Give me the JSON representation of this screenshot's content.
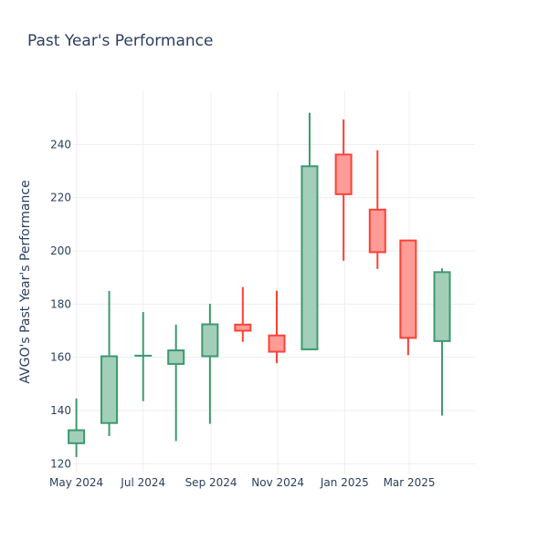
{
  "chart_data": {
    "type": "candlestick",
    "title": "Past Year's Performance",
    "xlabel": "",
    "ylabel": "AVGO's Past Year's Performance",
    "ylim": [
      116,
      260
    ],
    "yticks": [
      120,
      140,
      160,
      180,
      200,
      220,
      240
    ],
    "xticks": [
      {
        "date": "2024-05-01",
        "label": "May 2024"
      },
      {
        "date": "2024-07-01",
        "label": "Jul 2024"
      },
      {
        "date": "2024-09-01",
        "label": "Sep 2024"
      },
      {
        "date": "2024-11-01",
        "label": "Nov 2024"
      },
      {
        "date": "2025-01-01",
        "label": "Jan 2025"
      },
      {
        "date": "2025-03-01",
        "label": "Mar 2025"
      }
    ],
    "x_range": [
      "2024-04-28",
      "2025-04-30"
    ],
    "colors": {
      "increasing_line": "#3d9970",
      "increasing_fill": "#a3cfb9",
      "decreasing_line": "#ff4136",
      "decreasing_fill": "#ff9c98",
      "grid": "#eeeeee",
      "text": "#2a3f5f"
    },
    "grid": true,
    "series": [
      {
        "values": [
          {
            "date": "2024-05-01",
            "open": 127.7,
            "high": 144.5,
            "low": 122.5,
            "close": 132.6
          },
          {
            "date": "2024-05-31",
            "open": 135.3,
            "high": 184.9,
            "low": 130.4,
            "close": 160.4
          },
          {
            "date": "2024-07-01",
            "open": 160.6,
            "high": 177.0,
            "low": 143.5,
            "close": 160.6
          },
          {
            "date": "2024-07-31",
            "open": 157.5,
            "high": 172.3,
            "low": 128.5,
            "close": 162.6
          },
          {
            "date": "2024-08-31",
            "open": 160.4,
            "high": 180.1,
            "low": 135.0,
            "close": 172.4
          },
          {
            "date": "2024-09-30",
            "open": 172.3,
            "high": 186.4,
            "low": 165.8,
            "close": 170.0
          },
          {
            "date": "2024-10-31",
            "open": 168.2,
            "high": 185.0,
            "low": 157.8,
            "close": 162.1
          },
          {
            "date": "2024-11-30",
            "open": 163.0,
            "high": 251.9,
            "low": 163.0,
            "close": 231.8
          },
          {
            "date": "2024-12-31",
            "open": 236.2,
            "high": 249.4,
            "low": 196.3,
            "close": 221.3
          },
          {
            "date": "2025-01-31",
            "open": 215.5,
            "high": 237.8,
            "low": 193.2,
            "close": 199.5
          },
          {
            "date": "2025-02-28",
            "open": 203.9,
            "high": 203.9,
            "low": 160.8,
            "close": 167.3
          },
          {
            "date": "2025-03-31",
            "open": 166.1,
            "high": 193.4,
            "low": 138.1,
            "close": 192.0
          }
        ]
      }
    ]
  }
}
